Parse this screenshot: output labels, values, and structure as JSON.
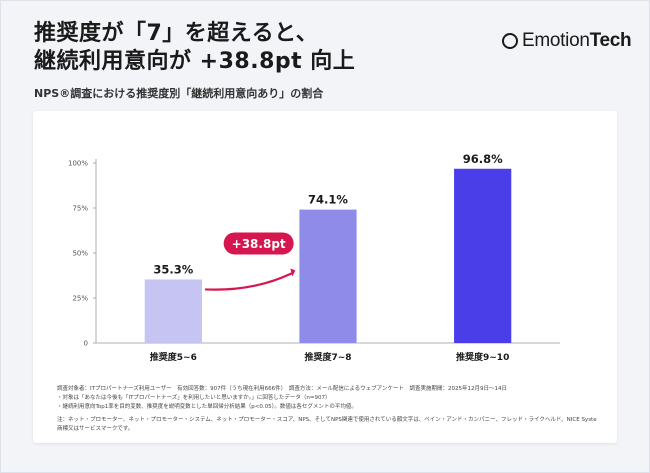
{
  "brand": {
    "logo_light": "Emotion",
    "logo_bold": "Tech"
  },
  "header": {
    "title_line1": "推奨度が「7」を超えると、",
    "title_line2": "継続利用意向が +38.8pt 向上",
    "subtitle": "NPS®調査における推奨度別「継続利用意向あり」の割合"
  },
  "colors": {
    "background": "#f3f4f8",
    "bar_low": "#c6c4f2",
    "bar_mid": "#8f8be8",
    "bar_high": "#4a3ee8",
    "accent": "#d6164e"
  },
  "chart_data": {
    "type": "bar",
    "categories": [
      "推奨度5~6",
      "推奨度7~8",
      "推奨度9~10"
    ],
    "values": [
      35.3,
      74.1,
      96.8
    ],
    "data_labels": [
      "35.3%",
      "74.1%",
      "96.8%"
    ],
    "yticks": [
      "0",
      "25%",
      "50%",
      "75%",
      "100%"
    ],
    "ylim": [
      0,
      100
    ],
    "grid": false,
    "annotation": {
      "label": "+38.8pt",
      "from_category": "推奨度5~6",
      "to_category": "推奨度7~8"
    }
  },
  "notes": [
    "調査対象者：ITプロパートナーズ利用ユーザー　有効回答数：907件（うち現在利用666件）　調査方法：メール配信によるウェブアンケート　調査実施期間：2025年12月9日〜14日",
    "・対象は「あなたは今後も「ITプロパートナーズ」を利用したいと思いますか。」に回答したデータ（n=907）",
    "・継続利用意向Top1率を目的変数、推奨度を説明変数とした単回帰分析結果（p<0.05）。数値は各セグメントの平均値。",
    "注：ネット・プロモーター、ネット・プロモーター・システム、ネット・プロモーター・スコア、NPS、そしてNPS関連で使用されている顔文字は、ベイン・アンド・カンパニー、フレッド・ライクヘルド、NICE Systems, Inc.の登録",
    "商標又はサービスマークです。"
  ]
}
